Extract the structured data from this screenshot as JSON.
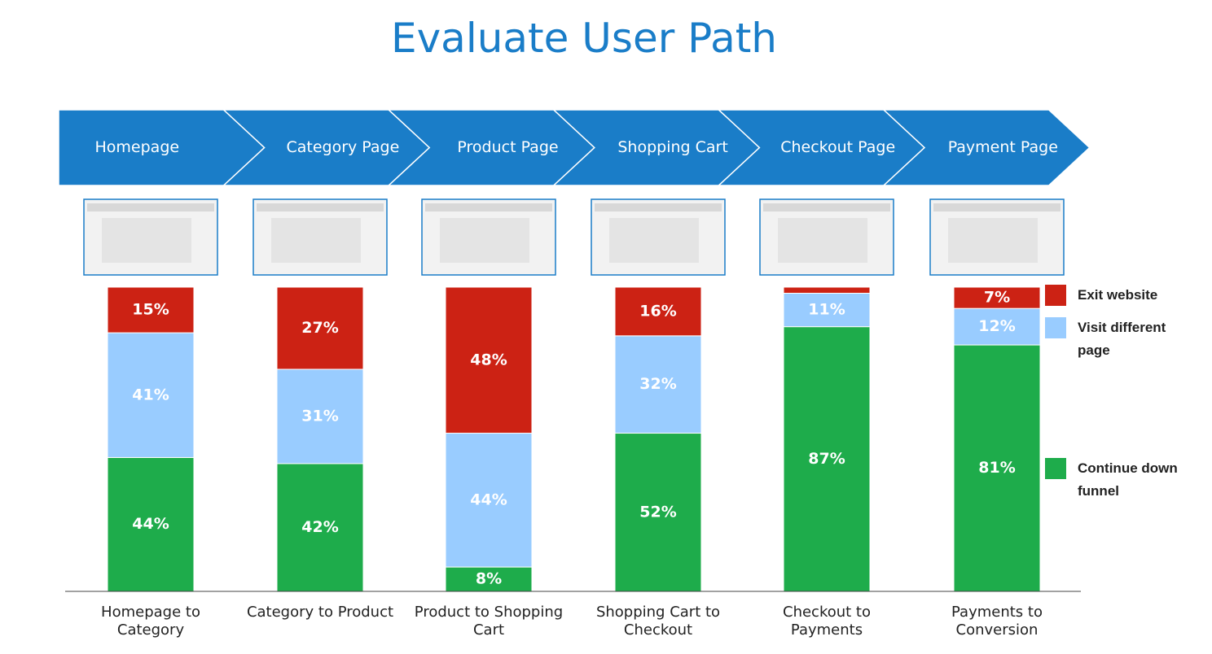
{
  "chart_data": {
    "type": "bar",
    "stacked": true,
    "title": "Evaluate User Path",
    "steps": [
      "Homepage",
      "Category Page",
      "Product Page",
      "Shopping Cart",
      "Checkout Page",
      "Payment Page"
    ],
    "categories": [
      "Homepage to Category",
      "Category to Product",
      "Product to Shopping Cart",
      "Shopping Cart to Checkout",
      "Checkout to Payments",
      "Payments to Conversion"
    ],
    "series": [
      {
        "name": "Exit website",
        "color": "#cc2214",
        "values": [
          15,
          27,
          48,
          16,
          2,
          7
        ],
        "value_labels": [
          "15%",
          "27%",
          "48%",
          "16%",
          null,
          "7%"
        ]
      },
      {
        "name": "Visit different page",
        "color": "#99ccff",
        "values": [
          41,
          31,
          44,
          32,
          11,
          12
        ],
        "value_labels": [
          "41%",
          "31%",
          "44%",
          "32%",
          "11%",
          "12%"
        ]
      },
      {
        "name": "Continue down funnel",
        "color": "#1eac4b",
        "values": [
          44,
          42,
          8,
          52,
          87,
          81
        ],
        "value_labels": [
          "44%",
          "42%",
          "8%",
          "52%",
          "87%",
          "81%"
        ]
      }
    ],
    "ylim": [
      0,
      100
    ],
    "legend": "right"
  }
}
